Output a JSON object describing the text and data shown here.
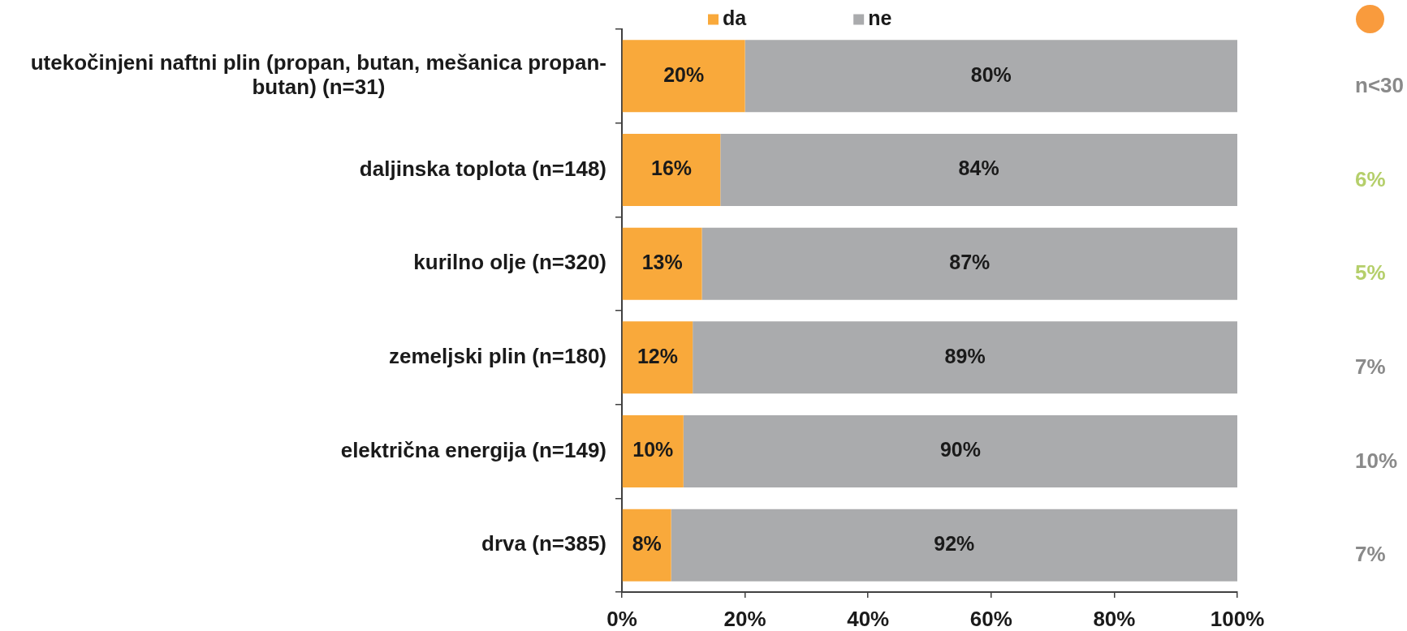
{
  "chart_data": {
    "type": "bar",
    "orientation": "horizontal",
    "stacked": true,
    "categories": [
      "utekočinjeni naftni plin (propan, butan, mešanica propan-butan) (n=31)",
      "daljinska toplota (n=148)",
      "kurilno olje (n=320)",
      "zemeljski plin (n=180)",
      "električna energija (n=149)",
      "drva (n=385)"
    ],
    "series": [
      {
        "name": "da",
        "color": "#f9a93b",
        "values": [
          20,
          16,
          13,
          11.5,
          10,
          8
        ],
        "value_labels": [
          "20%",
          "16%",
          "13%",
          "12%",
          "10%",
          "8%"
        ]
      },
      {
        "name": "ne",
        "color": "#aaabad",
        "values": [
          80,
          84,
          87,
          88.5,
          90,
          92
        ],
        "value_labels": [
          "80%",
          "84%",
          "87%",
          "89%",
          "90%",
          "92%"
        ]
      }
    ],
    "xlim": [
      0,
      100
    ],
    "xticks": [
      {
        "value": 0,
        "label": "0%"
      },
      {
        "value": 20,
        "label": "20%"
      },
      {
        "value": 40,
        "label": "40%"
      },
      {
        "value": 60,
        "label": "60%"
      },
      {
        "value": 80,
        "label": "80%"
      },
      {
        "value": 100,
        "label": "100%"
      }
    ],
    "legend": "top",
    "annotations": [
      "n<30",
      "6%",
      "5%",
      "7%",
      "10%",
      "7%"
    ]
  }
}
